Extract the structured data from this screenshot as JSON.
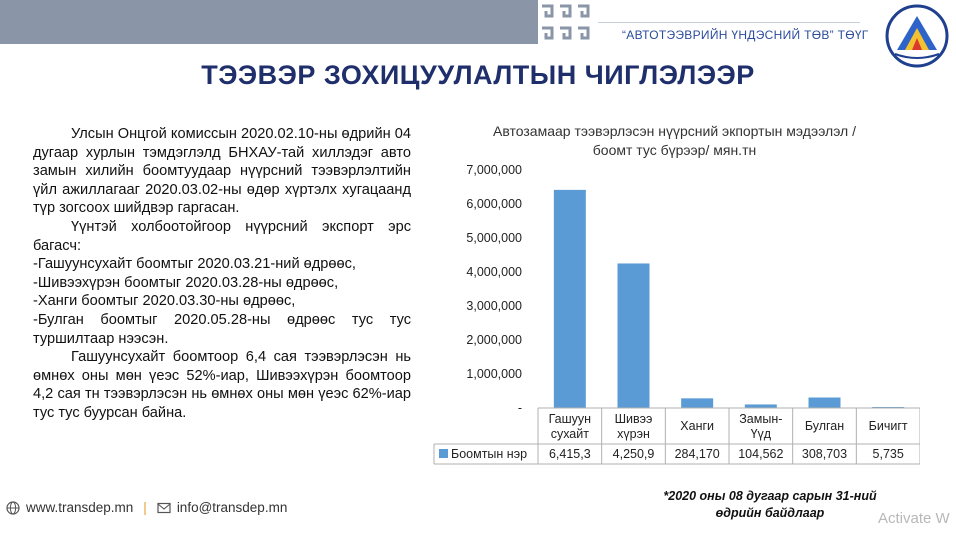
{
  "header": {
    "org_name": "“АВТОТЭЭВРИЙН ҮНДЭСНИЙ ТӨВ” ТӨҮГ",
    "logo_icon": "org-emblem-icon"
  },
  "title": "ТЭЭВЭР ЗОХИЦУУЛАЛТЫН ЧИГЛЭЛЭЭР",
  "body": {
    "p1": "Улсын Онцгой комиссын 2020.02.10-ны өдрийн 04 дугаар хурлын тэмдэглэлд БНХАУ-тай хиллэдэг авто замын хилийн боомтуудаар нүүрсний тээвэрлэлтийн үйл ажиллагааг 2020.03.02-ны өдөр хүртэлх хугацаанд түр зогсоох шийдвэр гаргасан.",
    "p2": "Үүнтэй холбоотойгоор нүүрсний экспорт эрс багасч:",
    "l1": "-Гашуунсухайт боомтыг 2020.03.21-ний өдрөөс,",
    "l2": "-Шивээхүрэн боомтыг 2020.03.28-ны өдрөөс,",
    "l3": "-Ханги боомтыг 2020.03.30-ны өдрөөс,",
    "l4": "-Булган боомтыг 2020.05.28-ны өдрөөс тус тус туршилтаар нээсэн.",
    "p3": "Гашуунсухайт боомтоор 6,4 сая тээвэрлэсэн нь өмнөх оны мөн үеэс 52%-иар, Шивээхүрэн боомтоор 4,2 сая тн тээвэрлэсэн нь өмнөх оны мөн үеэс 62%-иар тус тус буурсан байна."
  },
  "chart_data": {
    "type": "bar",
    "title": "Автозамаар тээвэрлэсэн нүүрсний экпортын мэдээлэл /боомт тус бүрээр/ мян.тн",
    "categories": [
      "Гашуун сухайт",
      "Шивээ хүрэн",
      "Ханги",
      "Замын-Үүд",
      "Булган",
      "Бичигт"
    ],
    "series": [
      {
        "name": "Боомтын нэр",
        "values": [
          6415.3,
          4250.9,
          284170,
          104562,
          308703,
          5735
        ],
        "labels": [
          "6,415,3",
          "4,250,9",
          "284,170",
          "104,562",
          "308,703",
          "5,735"
        ],
        "plotted_values": [
          6415300,
          4250900,
          284170,
          104562,
          308703,
          5735
        ]
      }
    ],
    "ylim": [
      0,
      7000000
    ],
    "yticks": [
      "-",
      "1,000,000",
      "2,000,000",
      "3,000,000",
      "4,000,000",
      "5,000,000",
      "6,000,000",
      "7,000,000"
    ],
    "bar_color": "#5b9bd5",
    "grid": false,
    "legend": "data-table"
  },
  "footnote": "*2020 оны 08 дугаар сарын 31-ний өдрийн байдлаар",
  "footer": {
    "website": "www.transdep.mn",
    "separator": "|",
    "email": "info@transdep.mn"
  },
  "watermark": "Activate W"
}
